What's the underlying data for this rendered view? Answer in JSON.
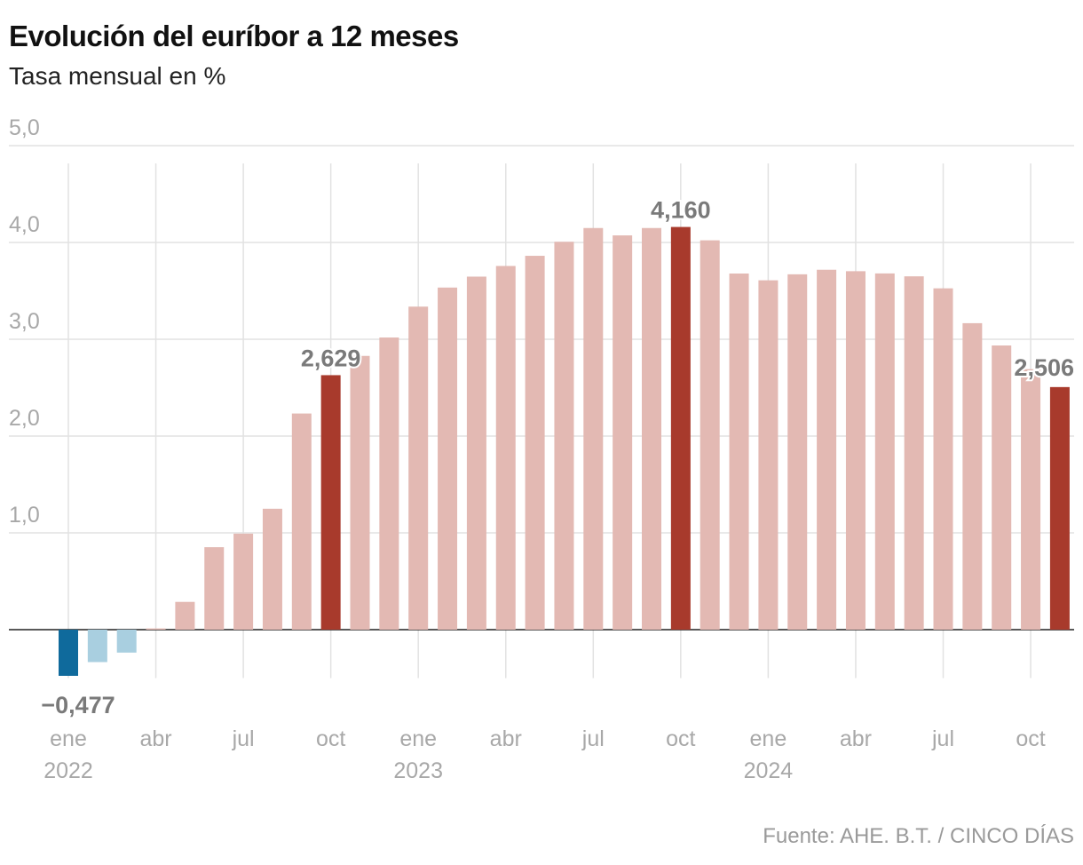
{
  "title": "Evolución del euríbor a 12 meses",
  "subtitle": "Tasa mensual en %",
  "source": "Fuente: AHE. B.T. / CINCO DÍAS",
  "colors": {
    "positive": "#e3b9b3",
    "highlight": "#a83a2c",
    "negative": "#a9cfe0",
    "negative_highlight": "#0f6a9c",
    "grid": "#e2e2e2",
    "zero_line": "#222222",
    "tick_text": "#a8a8a8",
    "label_text": "#7a7a7a"
  },
  "chart_data": {
    "type": "bar",
    "ylim": [
      -0.6,
      5.0
    ],
    "grid": true,
    "y_ticks": [
      {
        "value": 1,
        "label": "1,0"
      },
      {
        "value": 2,
        "label": "2,0"
      },
      {
        "value": 3,
        "label": "3,0"
      },
      {
        "value": 4,
        "label": "4,0"
      },
      {
        "value": 5,
        "label": "5,0"
      }
    ],
    "x_ticks": [
      {
        "index": 0,
        "label": "ene",
        "year": "2022"
      },
      {
        "index": 3,
        "label": "abr"
      },
      {
        "index": 6,
        "label": "jul"
      },
      {
        "index": 9,
        "label": "oct"
      },
      {
        "index": 12,
        "label": "ene",
        "year": "2023"
      },
      {
        "index": 15,
        "label": "abr"
      },
      {
        "index": 18,
        "label": "jul"
      },
      {
        "index": 21,
        "label": "oct"
      },
      {
        "index": 24,
        "label": "ene",
        "year": "2024"
      },
      {
        "index": 27,
        "label": "abr"
      },
      {
        "index": 30,
        "label": "jul"
      },
      {
        "index": 33,
        "label": "oct"
      }
    ],
    "categories": [
      "2022-01",
      "2022-02",
      "2022-03",
      "2022-04",
      "2022-05",
      "2022-06",
      "2022-07",
      "2022-08",
      "2022-09",
      "2022-10",
      "2022-11",
      "2022-12",
      "2023-01",
      "2023-02",
      "2023-03",
      "2023-04",
      "2023-05",
      "2023-06",
      "2023-07",
      "2023-08",
      "2023-09",
      "2023-10",
      "2023-11",
      "2023-12",
      "2024-01",
      "2024-02",
      "2024-03",
      "2024-04",
      "2024-05",
      "2024-06",
      "2024-07",
      "2024-08",
      "2024-09",
      "2024-10",
      "2024-11"
    ],
    "values": [
      -0.477,
      -0.335,
      -0.237,
      0.013,
      0.287,
      0.852,
      0.992,
      1.249,
      2.233,
      2.629,
      2.828,
      3.018,
      3.337,
      3.534,
      3.647,
      3.757,
      3.862,
      4.007,
      4.149,
      4.073,
      4.149,
      4.16,
      4.022,
      3.679,
      3.609,
      3.671,
      3.718,
      3.703,
      3.68,
      3.65,
      3.526,
      3.166,
      2.936,
      2.691,
      2.506
    ],
    "highlights": [
      0,
      9,
      21,
      34
    ],
    "data_labels": [
      {
        "index": 0,
        "text": "−0,477"
      },
      {
        "index": 9,
        "text": "2,629"
      },
      {
        "index": 21,
        "text": "4,160"
      },
      {
        "index": 34,
        "text": "2,506"
      }
    ]
  }
}
